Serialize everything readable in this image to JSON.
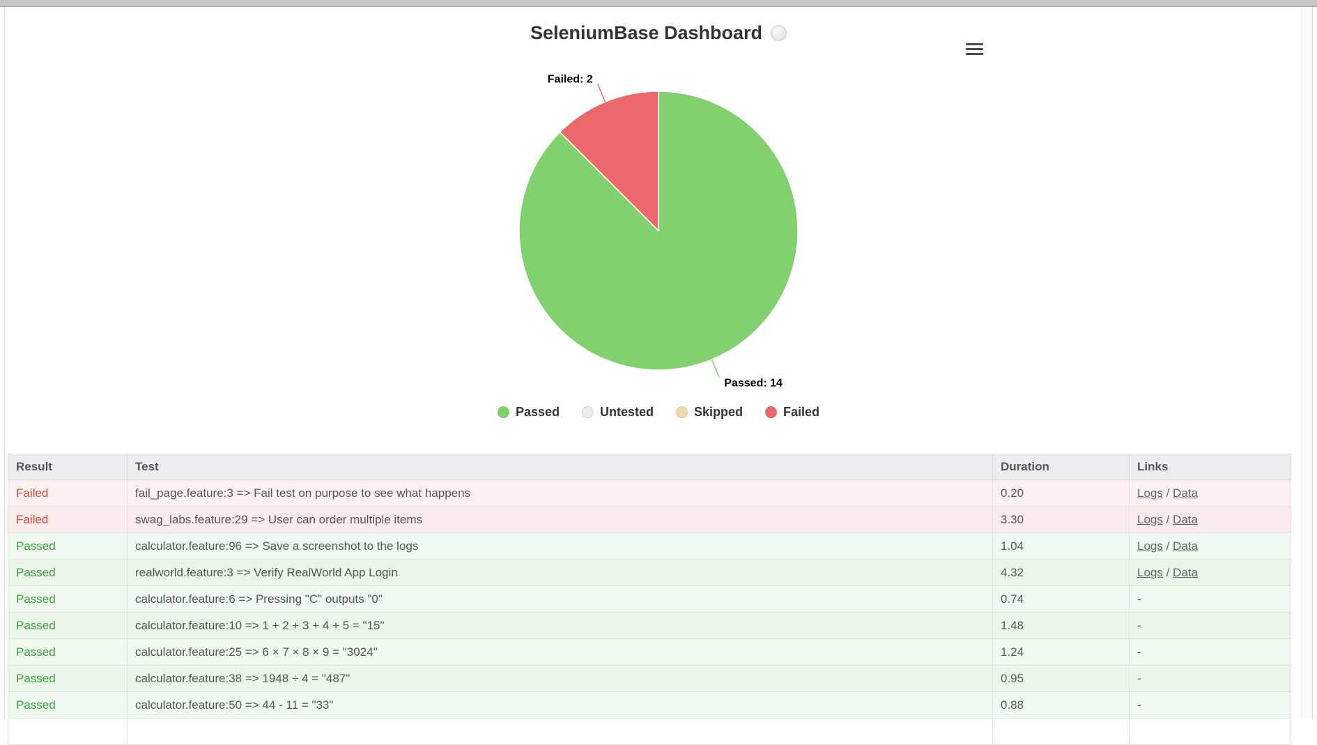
{
  "page": {
    "title": "SeleniumBase Dashboard"
  },
  "chart_data": {
    "type": "pie",
    "legend_position": "bottom",
    "slices": [
      {
        "label": "Passed",
        "value": 14,
        "color": "#82d16e",
        "callout": "Passed: 14"
      },
      {
        "label": "Failed",
        "value": 2,
        "color": "#ea676c",
        "callout": "Failed: 2"
      }
    ],
    "legend": [
      {
        "label": "Passed",
        "color": "#82d16e"
      },
      {
        "label": "Untested",
        "color": "#ececec",
        "border": "#d6d6d6"
      },
      {
        "label": "Skipped",
        "color": "#eed9ae",
        "border": "#e2c98f"
      },
      {
        "label": "Failed",
        "color": "#ea676c"
      }
    ]
  },
  "table": {
    "columns": [
      "Result",
      "Test",
      "Duration",
      "Links"
    ],
    "link_separator": " / ",
    "no_links": "-",
    "rows": [
      {
        "result": "Failed",
        "test": "fail_page.feature:3 => Fail test on purpose to see what happens",
        "duration": "0.20",
        "links": [
          "Logs",
          "Data"
        ]
      },
      {
        "result": "Failed",
        "test": "swag_labs.feature:29 => User can order multiple items",
        "duration": "3.30",
        "links": [
          "Logs",
          "Data"
        ]
      },
      {
        "result": "Passed",
        "test": "calculator.feature:96 => Save a screenshot to the logs",
        "duration": "1.04",
        "links": [
          "Logs",
          "Data"
        ]
      },
      {
        "result": "Passed",
        "test": "realworld.feature:3 => Verify RealWorld App Login",
        "duration": "4.32",
        "links": [
          "Logs",
          "Data"
        ]
      },
      {
        "result": "Passed",
        "test": "calculator.feature:6 => Pressing \"C\" outputs \"0\"",
        "duration": "0.74",
        "links": null
      },
      {
        "result": "Passed",
        "test": "calculator.feature:10 => 1 + 2 + 3 + 4 + 5 = \"15\"",
        "duration": "1.48",
        "links": null
      },
      {
        "result": "Passed",
        "test": "calculator.feature:25 => 6 × 7 × 8 × 9 = \"3024\"",
        "duration": "1.24",
        "links": null
      },
      {
        "result": "Passed",
        "test": "calculator.feature:38 => 1948 ÷ 4 = \"487\"",
        "duration": "0.95",
        "links": null
      },
      {
        "result": "Passed",
        "test": "calculator.feature:50 => 44 - 11 = \"33\"",
        "duration": "0.88",
        "links": null
      },
      {
        "result": "",
        "test": "",
        "duration": "",
        "links": []
      }
    ]
  }
}
